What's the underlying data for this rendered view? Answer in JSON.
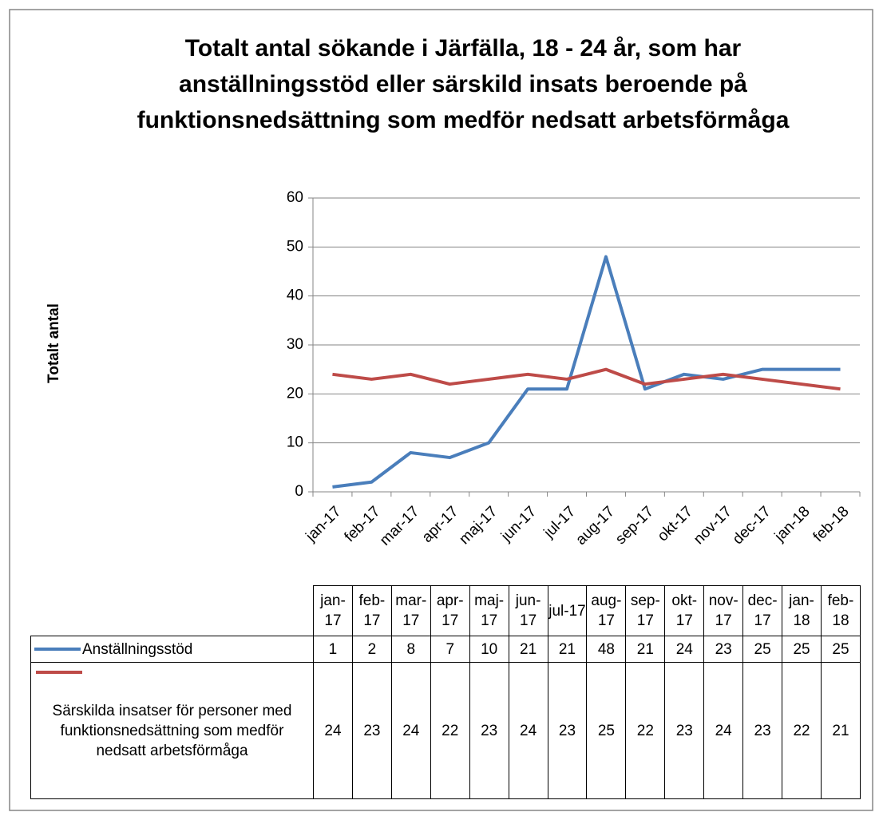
{
  "chart_data": {
    "type": "line",
    "title": "Totalt antal sökande i Järfälla, 18 - 24 år, som har anställningsstöd eller särskild insats beroende på funktionsnedsättning som medför nedsatt arbetsförmåga",
    "y_label": "Totalt antal",
    "categories": [
      "jan-17",
      "feb-17",
      "mar-17",
      "apr-17",
      "maj-17",
      "jun-17",
      "jul-17",
      "aug-17",
      "sep-17",
      "okt-17",
      "nov-17",
      "dec-17",
      "jan-18",
      "feb-18"
    ],
    "series": [
      {
        "name": "Anställningsstöd",
        "color": "#4a7ebb",
        "values": [
          1,
          2,
          8,
          7,
          10,
          21,
          21,
          48,
          21,
          24,
          23,
          25,
          25,
          25
        ]
      },
      {
        "name": "Särskilda insatser för personer med funktionsnedsättning som medför nedsatt arbetsförmåga",
        "color": "#be4b48",
        "values": [
          24,
          23,
          24,
          22,
          23,
          24,
          23,
          25,
          22,
          23,
          24,
          23,
          22,
          21
        ]
      }
    ],
    "ylim": [
      0,
      60
    ],
    "yticks": [
      0,
      10,
      20,
      30,
      40,
      50,
      60
    ],
    "grid": true,
    "data_table": true
  }
}
